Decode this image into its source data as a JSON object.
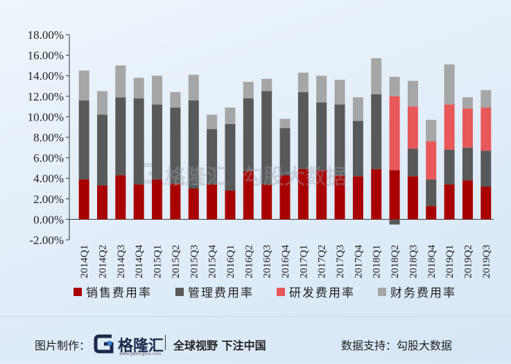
{
  "chart_data": {
    "type": "bar",
    "stacked": true,
    "title": "",
    "xlabel": "",
    "ylabel": "",
    "ylim": [
      -0.02,
      0.18
    ],
    "yticks": [
      "18.00%",
      "16.00%",
      "14.00%",
      "12.00%",
      "10.00%",
      "8.00%",
      "6.00%",
      "4.00%",
      "2.00%",
      "0.00%",
      "-2.00%"
    ],
    "ytick_values": [
      0.18,
      0.16,
      0.14,
      0.12,
      0.1,
      0.08,
      0.06,
      0.04,
      0.02,
      0.0,
      -0.02
    ],
    "grid": false,
    "legend_position": "bottom",
    "categories": [
      "2014Q1",
      "2014Q2",
      "2014Q3",
      "2014Q4",
      "2015Q1",
      "2015Q2",
      "2015Q3",
      "2015Q4",
      "2016Q1",
      "2016Q2",
      "2016Q3",
      "2016Q4",
      "2017Q1",
      "2017Q2",
      "2017Q3",
      "2017Q4",
      "2018Q1",
      "2018Q2",
      "2018Q3",
      "2018Q4",
      "2019Q1",
      "2019Q2",
      "2019Q3"
    ],
    "series": [
      {
        "name": "销售费用率",
        "color": "#a80000",
        "values": [
          0.039,
          0.033,
          0.043,
          0.034,
          0.039,
          0.035,
          0.03,
          0.034,
          0.028,
          0.047,
          0.034,
          0.043,
          0.049,
          0.048,
          0.043,
          0.042,
          0.049,
          0.048,
          0.042,
          0.013,
          0.034,
          0.038,
          0.032
        ]
      },
      {
        "name": "管理费用率",
        "color": "#595959",
        "values": [
          0.077,
          0.069,
          0.076,
          0.084,
          0.073,
          0.074,
          0.086,
          0.054,
          0.065,
          0.071,
          0.091,
          0.046,
          0.075,
          0.066,
          0.069,
          0.054,
          0.073,
          0.0,
          0.027,
          0.026,
          0.034,
          0.032,
          0.035
        ]
      },
      {
        "name": "研发费用率",
        "color": "#e8585a",
        "values": [
          0,
          0,
          0,
          0,
          0,
          0,
          0,
          0,
          0,
          0,
          0,
          0,
          0,
          0,
          0,
          0,
          0,
          0.072,
          0.041,
          0.037,
          0.044,
          0.038,
          0.042
        ]
      },
      {
        "name": "财务费用率",
        "color": "#a6a6a6",
        "values": [
          0.029,
          0.023,
          0.031,
          0.02,
          0.028,
          0.015,
          0.025,
          0.014,
          0.016,
          0.016,
          0.012,
          0.009,
          0.019,
          0.026,
          0.024,
          0.023,
          0.035,
          0.019,
          0.025,
          0.021,
          0.039,
          0.011,
          0.017
        ]
      }
    ],
    "negative_values": {
      "2018Q2": -0.005
    }
  },
  "watermark": {
    "brand": "格隆汇",
    "brand_url": "www.gelonghui.com",
    "source": "勾股大数据"
  },
  "footer": {
    "made_by_label": "图片制作：",
    "brand_name": "格隆汇",
    "brand_url": "www.gelonghui.com",
    "slogan": "全球视野 下注中国",
    "source_label": "数据支持：勾股大数据"
  }
}
